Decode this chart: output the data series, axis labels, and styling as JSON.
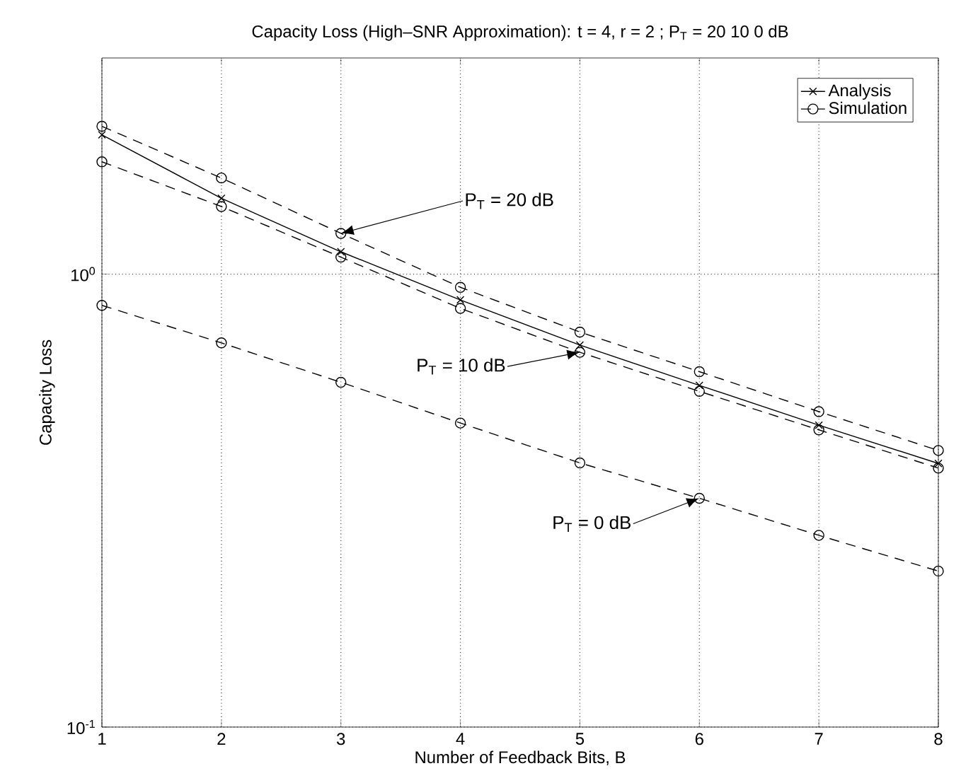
{
  "chart_data": {
    "type": "line",
    "title": "Capacity Loss (High–SNR Approximation): t = 4, r = 2 ; P$_{T}$ = 20  10   0 dB",
    "xlabel": "Number of Feedback Bits, B",
    "ylabel": "Capacity Loss",
    "x": [
      1,
      2,
      3,
      4,
      5,
      6,
      7,
      8
    ],
    "series": [
      {
        "name": "Analysis",
        "color": "#000000",
        "marker": "cross",
        "line_style": "solid",
        "values": [
          2.03,
          1.47,
          1.12,
          0.877,
          0.697,
          0.568,
          0.464,
          0.382
        ]
      },
      {
        "name": "Simulation",
        "color": "#000000",
        "marker": "circle",
        "line_style": "dashed",
        "values": [
          2.12,
          1.63,
          1.23,
          0.935,
          0.745,
          0.609,
          0.497,
          0.408
        ]
      },
      {
        "color": "#000000",
        "marker": "circle",
        "line_style": "dashed",
        "values": [
          1.77,
          1.41,
          1.09,
          0.84,
          0.672,
          0.551,
          0.453,
          0.373
        ]
      },
      {
        "color": "#000000",
        "marker": "circle",
        "line_style": "dashed",
        "values": [
          0.853,
          0.705,
          0.577,
          0.469,
          0.383,
          0.32,
          0.265,
          0.221
        ]
      }
    ],
    "log": "y",
    "xlim": [
      1,
      8
    ],
    "ylim": [
      0.1,
      3
    ],
    "xticks": [
      1,
      2,
      3,
      4,
      5,
      6,
      7,
      8
    ],
    "yticks": [
      {
        "value": 0.1,
        "label": "10$^{-1}$"
      },
      {
        "value": 1,
        "label": "10$^{0}$"
      }
    ],
    "grid": true,
    "legend": "top right",
    "annotations": [
      {
        "text": "P$_{T}$ = 20 dB",
        "x": 3,
        "y": 1.23
      },
      {
        "text": "P$_{T}$ = 10 dB",
        "x": 5,
        "y": 0.672
      },
      {
        "text": "P$_{T}$ = 0 dB",
        "x": 6,
        "y": 0.32
      }
    ]
  }
}
